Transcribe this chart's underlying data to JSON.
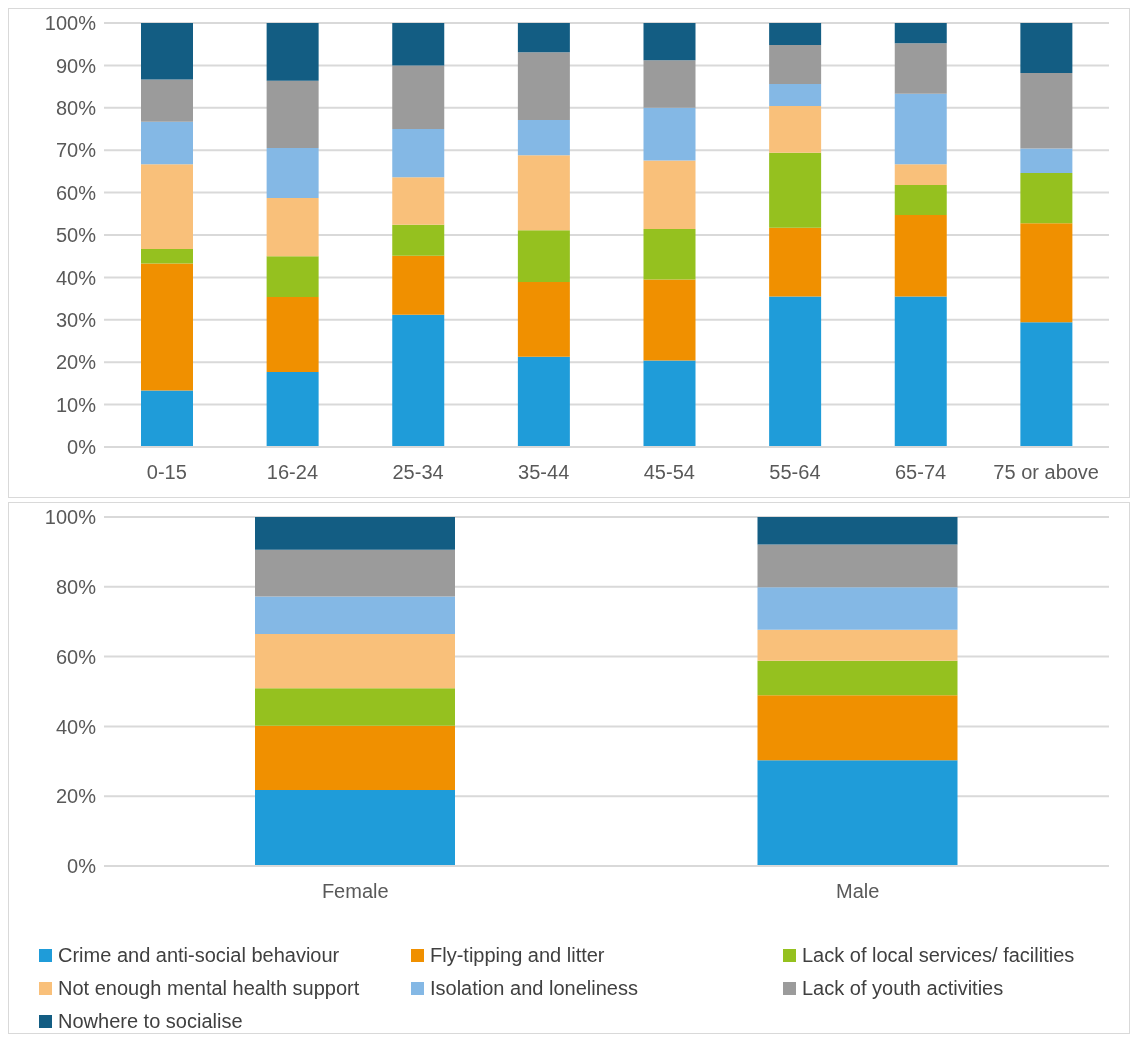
{
  "chart_data": [
    {
      "type": "bar",
      "stacked": true,
      "categories": [
        "0-15",
        "16-24",
        "25-34",
        "35-44",
        "45-54",
        "55-64",
        "65-74",
        "75 or above"
      ],
      "ylim": [
        0,
        100
      ],
      "yticks": [
        {
          "value": 0,
          "label": "0%"
        },
        {
          "value": 10,
          "label": "10%"
        },
        {
          "value": 20,
          "label": "20%"
        },
        {
          "value": 30,
          "label": "30%"
        },
        {
          "value": 40,
          "label": "40%"
        },
        {
          "value": 50,
          "label": "50%"
        },
        {
          "value": 60,
          "label": "60%"
        },
        {
          "value": 70,
          "label": "70%"
        },
        {
          "value": 80,
          "label": "80%"
        },
        {
          "value": 90,
          "label": "90%"
        },
        {
          "value": 100,
          "label": "100%"
        }
      ],
      "grid": "y",
      "series": [
        {
          "color": "#1f9cd9",
          "values": [
            13.3,
            17.7,
            31.2,
            21.3,
            20.4,
            35.5,
            35.5,
            29.4
          ]
        },
        {
          "color": "#f09000",
          "values": [
            30,
            17.7,
            13.9,
            17.6,
            19.1,
            16.2,
            19.2,
            23.4
          ]
        },
        {
          "color": "#95c11f",
          "values": [
            3.4,
            9.6,
            7.3,
            12.2,
            11.9,
            17.7,
            7.1,
            11.8
          ]
        },
        {
          "color": "#f9c07a",
          "values": [
            20,
            13.7,
            11.2,
            17.7,
            16.2,
            11,
            4.9,
            0
          ]
        },
        {
          "color": "#84b8e5",
          "values": [
            10,
            11.8,
            11.4,
            8.3,
            12.4,
            5.2,
            16.6,
            5.8
          ]
        },
        {
          "color": "#9b9b9b",
          "values": [
            10,
            15.9,
            15,
            16,
            11.2,
            9.2,
            11.9,
            17.8
          ]
        },
        {
          "color": "#135d83",
          "values": [
            13.3,
            13.6,
            10,
            6.9,
            8.8,
            5.2,
            4.8,
            11.8
          ]
        }
      ]
    },
    {
      "type": "bar",
      "stacked": true,
      "categories": [
        "Female",
        "Male"
      ],
      "ylim": [
        0,
        100
      ],
      "yticks": [
        {
          "value": 0,
          "label": "0%"
        },
        {
          "value": 20,
          "label": "20%"
        },
        {
          "value": 40,
          "label": "40%"
        },
        {
          "value": 60,
          "label": "60%"
        },
        {
          "value": 80,
          "label": "80%"
        },
        {
          "value": 100,
          "label": "100%"
        }
      ],
      "grid": "y",
      "legend": "bottom",
      "series": [
        {
          "name": "Crime and anti-social behaviour",
          "color": "#1f9cd9",
          "values": [
            21.8,
            30.3
          ]
        },
        {
          "name": "Fly-tipping and litter",
          "color": "#f09000",
          "values": [
            18.4,
            18.6
          ]
        },
        {
          "name": "Lack of local services/ facilities",
          "color": "#95c11f",
          "values": [
            10.7,
            9.9
          ]
        },
        {
          "name": "Not enough mental health support",
          "color": "#f9c07a",
          "values": [
            15.6,
            8.9
          ]
        },
        {
          "name": "Isolation and loneliness",
          "color": "#84b8e5",
          "values": [
            10.7,
            12.2
          ]
        },
        {
          "name": "Lack of youth activities",
          "color": "#9b9b9b",
          "values": [
            13.4,
            12.2
          ]
        },
        {
          "name": "Nowhere to socialise",
          "color": "#135d83",
          "values": [
            9.4,
            7.9
          ]
        }
      ]
    }
  ]
}
